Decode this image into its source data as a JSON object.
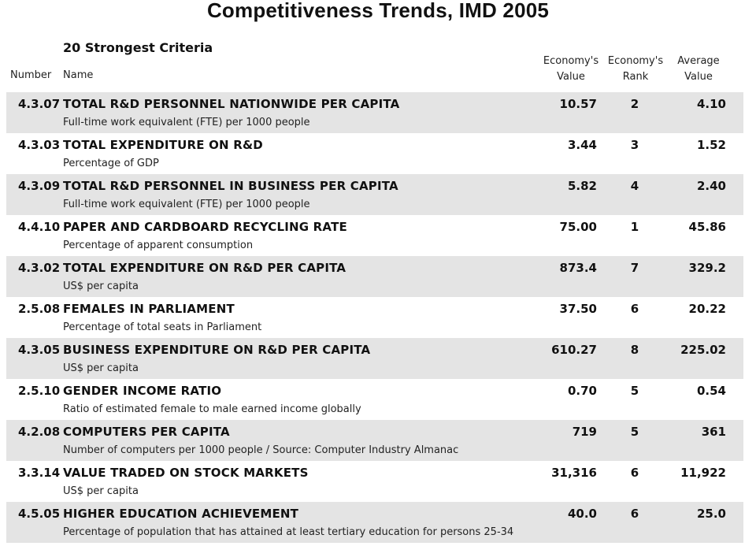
{
  "title": "Competitiveness Trends, IMD 2005",
  "section_title": "20 Strongest Criteria",
  "headers": {
    "number": "Number",
    "name": "Name",
    "value_line1": "Economy's",
    "value_line2": "Value",
    "rank_line1": "Economy's",
    "rank_line2": "Rank",
    "avg_line1": "Average",
    "avg_line2": "Value"
  },
  "rows": [
    {
      "number": "4.3.07",
      "name": "TOTAL R&D PERSONNEL NATIONWIDE PER CAPITA",
      "desc": "Full-time work equivalent (FTE) per 1000 people",
      "value": "10.57",
      "rank": "2",
      "avg": "4.10"
    },
    {
      "number": "4.3.03",
      "name": "TOTAL EXPENDITURE ON R&D",
      "desc": "Percentage of GDP",
      "value": "3.44",
      "rank": "3",
      "avg": "1.52"
    },
    {
      "number": "4.3.09",
      "name": "TOTAL R&D PERSONNEL IN BUSINESS PER CAPITA",
      "desc": "Full-time work equivalent (FTE) per 1000 people",
      "value": "5.82",
      "rank": "4",
      "avg": "2.40"
    },
    {
      "number": "4.4.10",
      "name": "PAPER AND CARDBOARD RECYCLING RATE",
      "desc": "Percentage of apparent consumption",
      "value": "75.00",
      "rank": "1",
      "avg": "45.86"
    },
    {
      "number": "4.3.02",
      "name": "TOTAL EXPENDITURE ON R&D PER CAPITA",
      "desc": "US$ per capita",
      "value": "873.4",
      "rank": "7",
      "avg": "329.2"
    },
    {
      "number": "2.5.08",
      "name": "FEMALES IN PARLIAMENT",
      "desc": "Percentage of total seats in Parliament",
      "value": "37.50",
      "rank": "6",
      "avg": "20.22"
    },
    {
      "number": "4.3.05",
      "name": "BUSINESS EXPENDITURE ON R&D PER CAPITA",
      "desc": "US$ per capita",
      "value": "610.27",
      "rank": "8",
      "avg": "225.02"
    },
    {
      "number": "2.5.10",
      "name": "GENDER INCOME RATIO",
      "desc": "Ratio of estimated female to male earned income globally",
      "value": "0.70",
      "rank": "5",
      "avg": "0.54"
    },
    {
      "number": "4.2.08",
      "name": "COMPUTERS PER CAPITA",
      "desc": "Number of computers per 1000 people / Source: Computer Industry Almanac",
      "value": "719",
      "rank": "5",
      "avg": "361"
    },
    {
      "number": "3.3.14",
      "name": "VALUE TRADED ON STOCK MARKETS",
      "desc": "US$ per capita",
      "value": "31,316",
      "rank": "6",
      "avg": "11,922"
    },
    {
      "number": "4.5.05",
      "name": "HIGHER EDUCATION ACHIEVEMENT",
      "desc": "Percentage of population that has attained at least tertiary education for persons 25-34",
      "value": "40.0",
      "rank": "6",
      "avg": "25.0"
    }
  ]
}
